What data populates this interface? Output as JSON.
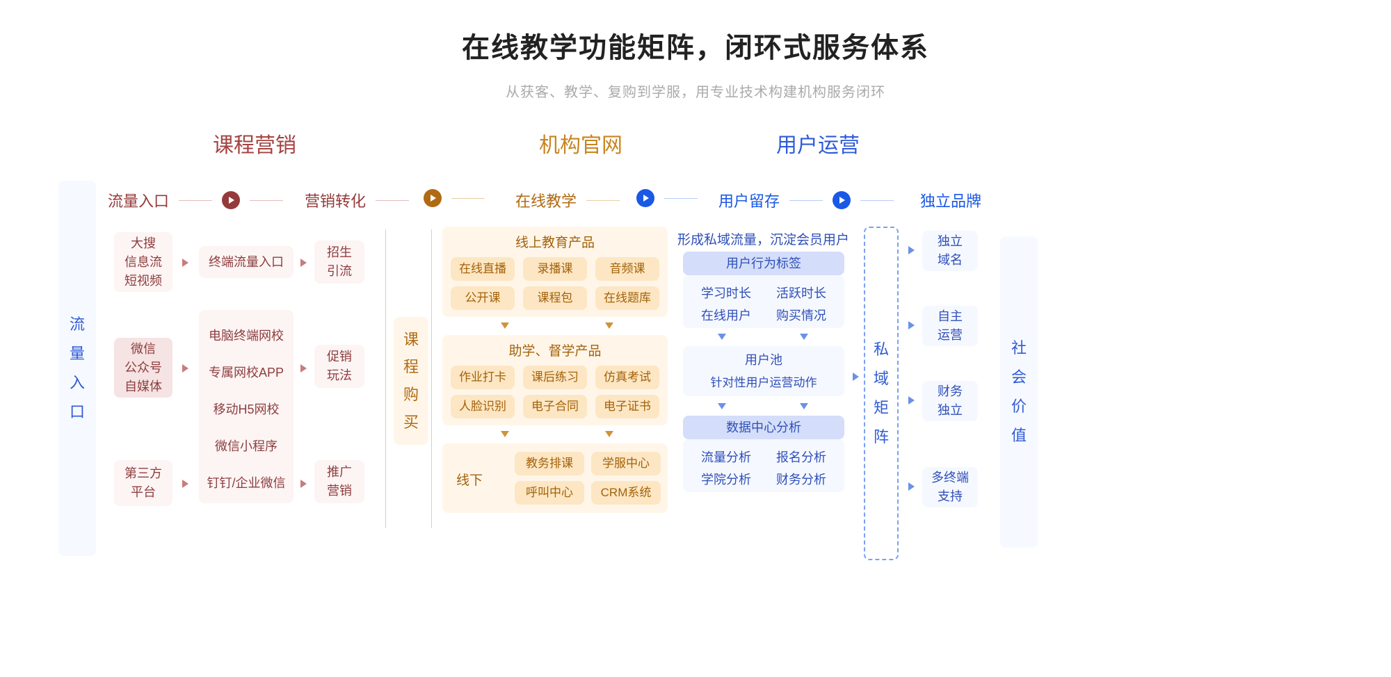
{
  "title": "在线教学功能矩阵，闭环式服务体系",
  "subtitle": "从获客、教学、复购到学服，用专业技术构建机构服务闭环",
  "sections": {
    "marketing": "课程营销",
    "site": "机构官网",
    "ops": "用户运营"
  },
  "phases": {
    "traffic": "流量入口",
    "convert": "营销转化",
    "teach": "在线教学",
    "retain": "用户留存",
    "brand": "独立品牌"
  },
  "vbars": {
    "left": "流量入口",
    "mid": "课程购买",
    "brand": "私域矩阵",
    "right": "社会价值"
  },
  "marketing": {
    "sources": {
      "a": "大搜\n信息流\n短视频",
      "b": "微信\n公众号\n自媒体",
      "c": "第三方\n平台"
    },
    "channel": {
      "a": "终端流量入口",
      "b1": "电脑终端网校",
      "b2": "专属网校APP",
      "b3": "移动H5网校",
      "b4": "微信小程序",
      "b5": "钉钉/企业微信"
    },
    "convert": {
      "a": "招生\n引流",
      "b": "促销\n玩法",
      "c": "推广\n营销"
    }
  },
  "teach": {
    "group1_title": "线上教育产品",
    "g1": {
      "a": "在线直播",
      "b": "录播课",
      "c": "音频课",
      "d": "公开课",
      "e": "课程包",
      "f": "在线题库"
    },
    "group2_title": "助学、督学产品",
    "g2": {
      "a": "作业打卡",
      "b": "课后练习",
      "c": "仿真考试",
      "d": "人脸识别",
      "e": "电子合同",
      "f": "电子证书"
    },
    "offline_label": "线下",
    "g3": {
      "a": "教务排课",
      "b": "学服中心",
      "c": "呼叫中心",
      "d": "CRM系统"
    }
  },
  "ops": {
    "headline": "形成私域流量，沉淀会员用户",
    "tag_title": "用户行为标签",
    "tags": {
      "a": "学习时长",
      "b": "活跃时长",
      "c": "在线用户",
      "d": "购买情况"
    },
    "pool_title": "用户池",
    "pool_sub": "针对性用户运营动作",
    "data_title": "数据中心分析",
    "stats": {
      "a": "流量分析",
      "b": "报名分析",
      "c": "学院分析",
      "d": "财务分析"
    }
  },
  "brand_items": {
    "a": "独立\n域名",
    "b": "自主\n运营",
    "c": "财务\n独立",
    "d": "多终端\n支持"
  },
  "colors": {
    "red": "#953a3a",
    "red_light": "#fdf4f4",
    "red_mid": "#f6e3e3",
    "orange": "#b06a12",
    "orange_light": "#fff6e9",
    "orange_mid": "#fde6c3",
    "blue": "#1a58e6",
    "blue_light": "#f5f8ff",
    "blue_mid": "#e3eafa",
    "blue_deep": "#d4defa"
  }
}
